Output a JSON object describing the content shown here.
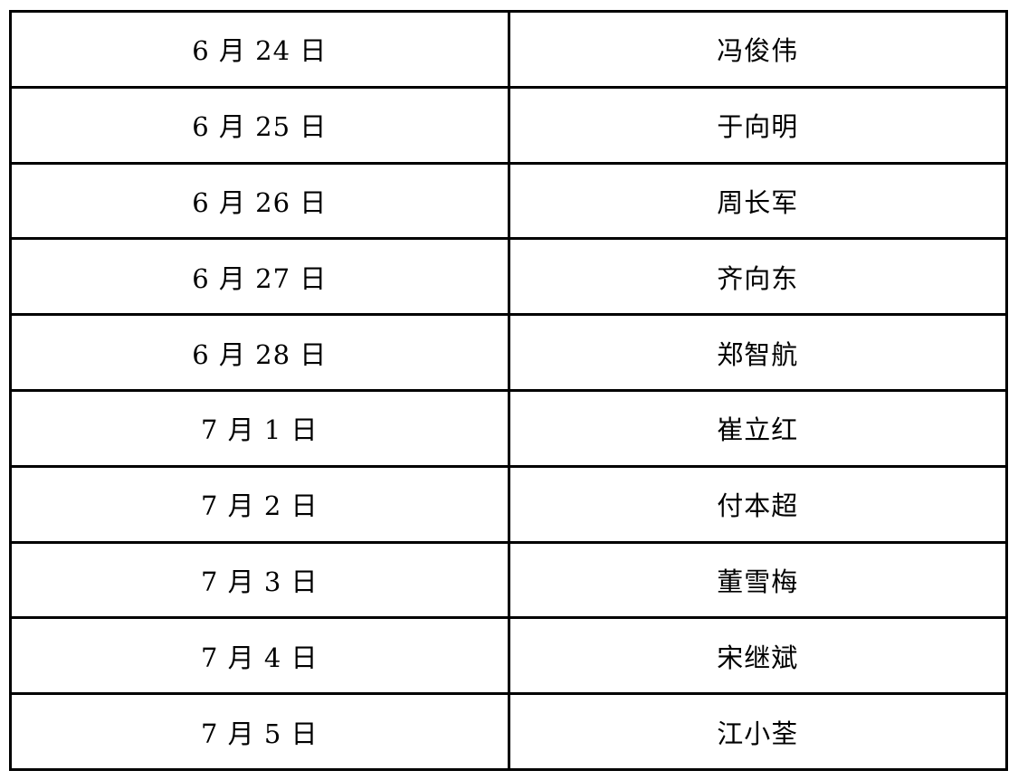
{
  "table": {
    "rows": [
      {
        "date": "6 月 24 日",
        "name": "冯俊伟"
      },
      {
        "date": "6 月 25 日",
        "name": "于向明"
      },
      {
        "date": "6 月 26 日",
        "name": "周长军"
      },
      {
        "date": "6 月 27 日",
        "name": "齐向东"
      },
      {
        "date": "6 月 28 日",
        "name": "郑智航"
      },
      {
        "date": "7 月 1 日",
        "name": "崔立红"
      },
      {
        "date": "7 月 2 日",
        "name": "付本超"
      },
      {
        "date": "7 月 3 日",
        "name": "董雪梅"
      },
      {
        "date": "7 月 4 日",
        "name": "宋继斌"
      },
      {
        "date": "7 月 5 日",
        "name": "江小荃"
      }
    ]
  }
}
